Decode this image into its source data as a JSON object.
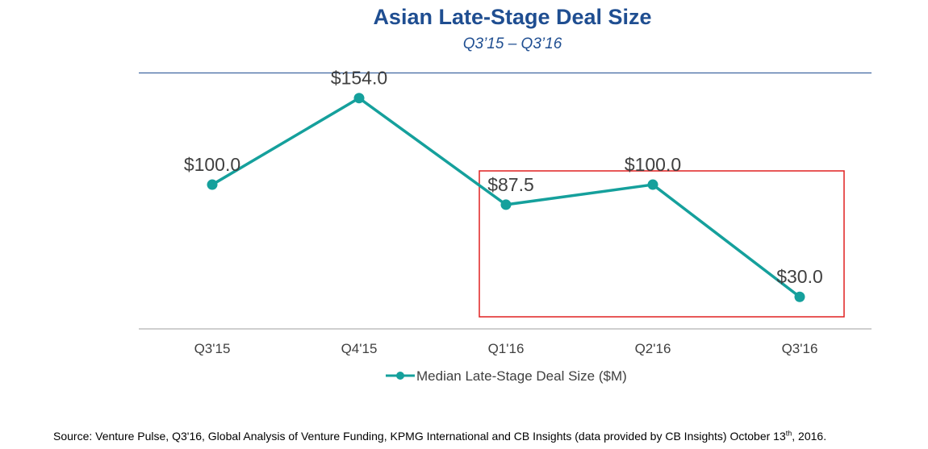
{
  "colors": {
    "title": "#1f4e91",
    "series": "#15a09c",
    "highlight_box": "#e02020",
    "axis": "#bfbfbf",
    "text": "#404040"
  },
  "chart_data": {
    "type": "line",
    "title": "Asian Late-Stage Deal Size",
    "subtitle": "Q3’15 – Q3’16",
    "categories": [
      "Q3'15",
      "Q4'15",
      "Q1'16",
      "Q2'16",
      "Q3'16"
    ],
    "series": [
      {
        "name": "Median Late-Stage Deal Size ($M)",
        "values": [
          100.0,
          154.0,
          87.5,
          100.0,
          30.0
        ],
        "labels": [
          "$100.0",
          "$154.0",
          "$87.5",
          "$100.0",
          "$30.0"
        ]
      }
    ],
    "ylim": [
      10,
      180
    ],
    "xlabel": "",
    "ylabel": "",
    "grid": false,
    "legend": "bottom-center",
    "highlight": {
      "from": "Q1'16",
      "to": "Q3'16"
    }
  },
  "source": {
    "text_before": "Source: Venture Pulse, Q3'16, Global Analysis of Venture Funding, KPMG International and CB Insights (data provided by CB Insights) October 13",
    "superscript": "th",
    "text_after": ", 2016."
  }
}
